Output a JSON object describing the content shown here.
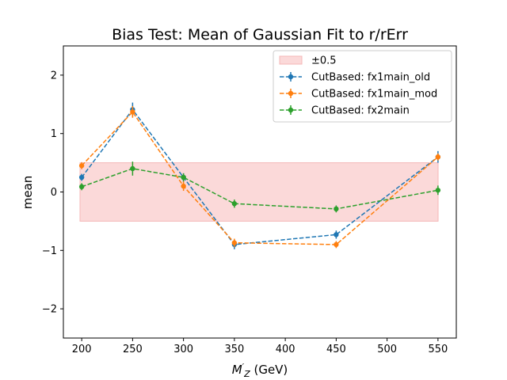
{
  "chart_data": {
    "type": "line",
    "title": "Bias Test: Mean of Gaussian Fit to r/rErr",
    "xlabel_main": "M",
    "xlabel_prime": "′",
    "xlabel_sub": "Z",
    "xlabel_unit": " (GeV)",
    "ylabel": "mean",
    "xlim": [
      182,
      568
    ],
    "ylim": [
      -2.5,
      2.5
    ],
    "xticks": [
      200,
      250,
      300,
      350,
      400,
      450,
      500,
      550
    ],
    "yticks": [
      -2,
      -1,
      0,
      1,
      2
    ],
    "band": {
      "label": "±0.5",
      "x": [
        182,
        568
      ],
      "y": [
        -0.5,
        0.5
      ],
      "color": "#fbd9d9",
      "edge": "#f4b7b7"
    },
    "series": [
      {
        "name": "CutBased: fx1main_old",
        "color": "#1f77b4",
        "x": [
          200,
          250,
          300,
          350,
          450,
          550
        ],
        "y": [
          0.25,
          1.41,
          0.25,
          -0.9,
          -0.73,
          0.6
        ],
        "err": [
          0.06,
          0.12,
          0.07,
          0.08,
          0.07,
          0.1
        ]
      },
      {
        "name": "CutBased: fx1main_mod",
        "color": "#ff7f0e",
        "x": [
          200,
          250,
          300,
          350,
          450,
          550
        ],
        "y": [
          0.45,
          1.37,
          0.1,
          -0.87,
          -0.9,
          0.6
        ],
        "err": [
          0.06,
          0.1,
          0.08,
          0.07,
          0.06,
          0.06
        ]
      },
      {
        "name": "CutBased: fx2main",
        "color": "#2ca02c",
        "x": [
          200,
          250,
          300,
          350,
          450,
          550
        ],
        "y": [
          0.09,
          0.4,
          0.25,
          -0.2,
          -0.29,
          0.03
        ],
        "err": [
          0.06,
          0.12,
          0.07,
          0.07,
          0.06,
          0.08
        ]
      }
    ],
    "legend": "top-right",
    "grid": false
  }
}
